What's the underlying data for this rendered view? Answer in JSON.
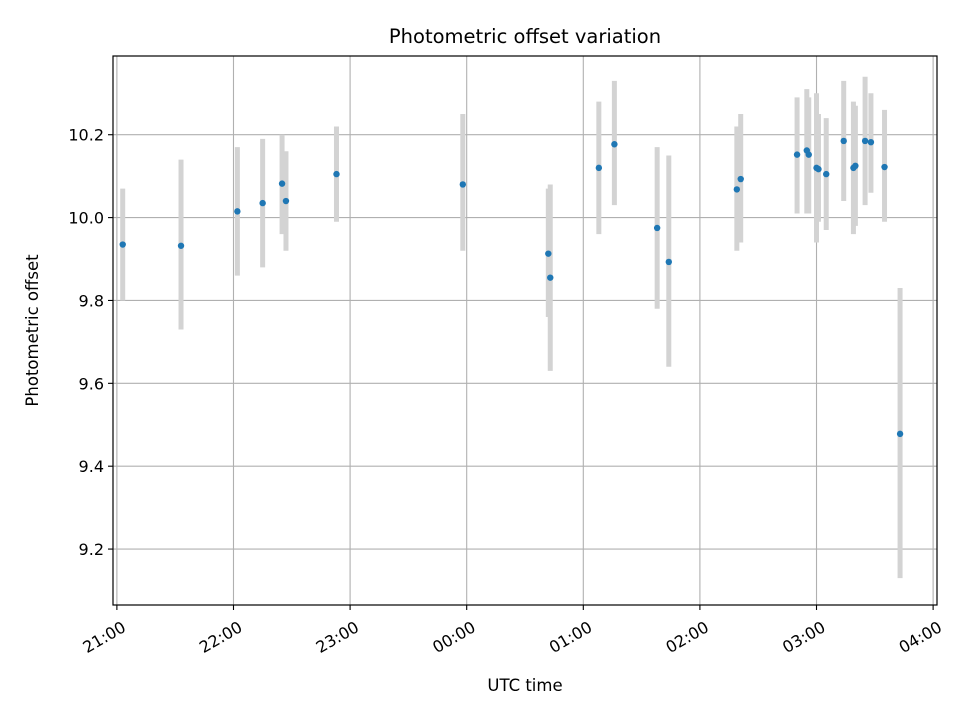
{
  "chart_data": {
    "type": "scatter",
    "title": "Photometric offset variation",
    "xlabel": "UTC time",
    "ylabel": "Photometric offset",
    "xlim": [
      "20:58",
      "04:02"
    ],
    "ylim": [
      9.065,
      10.39
    ],
    "grid": true,
    "point_color": "#1f77b4",
    "errorbar_color": "#d3d3d3",
    "x_ticks": [
      "21:00",
      "22:00",
      "23:00",
      "00:00",
      "01:00",
      "02:00",
      "03:00",
      "04:00"
    ],
    "y_ticks": [
      "9.2",
      "9.4",
      "9.6",
      "9.8",
      "10.0",
      "10.2"
    ],
    "points": [
      {
        "t": "21:03",
        "y": 9.935,
        "lo": 9.8,
        "hi": 10.07
      },
      {
        "t": "21:33",
        "y": 9.932,
        "lo": 9.73,
        "hi": 10.14
      },
      {
        "t": "22:02",
        "y": 10.015,
        "lo": 9.86,
        "hi": 10.17
      },
      {
        "t": "22:15",
        "y": 10.035,
        "lo": 9.88,
        "hi": 10.19
      },
      {
        "t": "22:25",
        "y": 10.082,
        "lo": 9.96,
        "hi": 10.2
      },
      {
        "t": "22:27",
        "y": 10.04,
        "lo": 9.92,
        "hi": 10.16
      },
      {
        "t": "22:53",
        "y": 10.105,
        "lo": 9.99,
        "hi": 10.22
      },
      {
        "t": "23:58",
        "y": 10.08,
        "lo": 9.92,
        "hi": 10.25
      },
      {
        "t": "00:42",
        "y": 9.913,
        "lo": 9.76,
        "hi": 10.07
      },
      {
        "t": "00:43",
        "y": 9.855,
        "lo": 9.63,
        "hi": 10.08
      },
      {
        "t": "01:08",
        "y": 10.12,
        "lo": 9.96,
        "hi": 10.28
      },
      {
        "t": "01:16",
        "y": 10.177,
        "lo": 10.03,
        "hi": 10.33
      },
      {
        "t": "01:38",
        "y": 9.975,
        "lo": 9.78,
        "hi": 10.17
      },
      {
        "t": "01:44",
        "y": 9.893,
        "lo": 9.64,
        "hi": 10.15
      },
      {
        "t": "02:19",
        "y": 10.068,
        "lo": 9.92,
        "hi": 10.22
      },
      {
        "t": "02:21",
        "y": 10.093,
        "lo": 9.94,
        "hi": 10.25
      },
      {
        "t": "02:50",
        "y": 10.152,
        "lo": 10.01,
        "hi": 10.29
      },
      {
        "t": "02:55",
        "y": 10.162,
        "lo": 10.01,
        "hi": 10.31
      },
      {
        "t": "02:56",
        "y": 10.152,
        "lo": 10.01,
        "hi": 10.29
      },
      {
        "t": "03:00",
        "y": 10.12,
        "lo": 9.94,
        "hi": 10.3
      },
      {
        "t": "03:01",
        "y": 10.117,
        "lo": 9.99,
        "hi": 10.25
      },
      {
        "t": "03:05",
        "y": 10.105,
        "lo": 9.97,
        "hi": 10.24
      },
      {
        "t": "03:14",
        "y": 10.185,
        "lo": 10.04,
        "hi": 10.33
      },
      {
        "t": "03:19",
        "y": 10.12,
        "lo": 9.96,
        "hi": 10.28
      },
      {
        "t": "03:20",
        "y": 10.125,
        "lo": 9.98,
        "hi": 10.27
      },
      {
        "t": "03:25",
        "y": 10.185,
        "lo": 10.03,
        "hi": 10.34
      },
      {
        "t": "03:28",
        "y": 10.182,
        "lo": 10.06,
        "hi": 10.3
      },
      {
        "t": "03:35",
        "y": 10.122,
        "lo": 9.99,
        "hi": 10.26
      },
      {
        "t": "03:43",
        "y": 9.478,
        "lo": 9.13,
        "hi": 9.83
      }
    ]
  }
}
